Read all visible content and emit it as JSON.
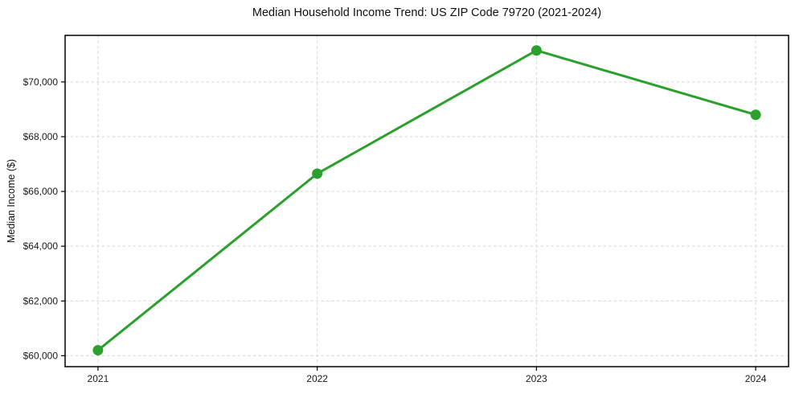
{
  "chart_data": {
    "type": "line",
    "title": "Median Household Income Trend: US ZIP Code 79720 (2021-2024)",
    "xlabel": "",
    "ylabel": "Median Income ($)",
    "x": [
      2021,
      2022,
      2023,
      2024
    ],
    "xtick_labels": [
      "2021",
      "2022",
      "2023",
      "2024"
    ],
    "values": [
      60200,
      66650,
      71150,
      68800
    ],
    "series_name": "Median Household Income",
    "yticks": [
      60000,
      62000,
      64000,
      66000,
      68000,
      70000
    ],
    "ytick_labels": [
      "$60,000",
      "$62,000",
      "$64,000",
      "$66,000",
      "$68,000",
      "$70,000"
    ],
    "ylim": [
      59600,
      71700
    ],
    "xlim": [
      2020.85,
      2024.15
    ],
    "grid": true,
    "grid_style": "dashed",
    "legend": "none",
    "marker": "circle",
    "colors": {
      "line": "#2ca02c",
      "marker": "#2ca02c",
      "grid": "#d6d6d6",
      "axis": "#000000",
      "text": "#1a1a1a",
      "background": "#ffffff"
    }
  }
}
